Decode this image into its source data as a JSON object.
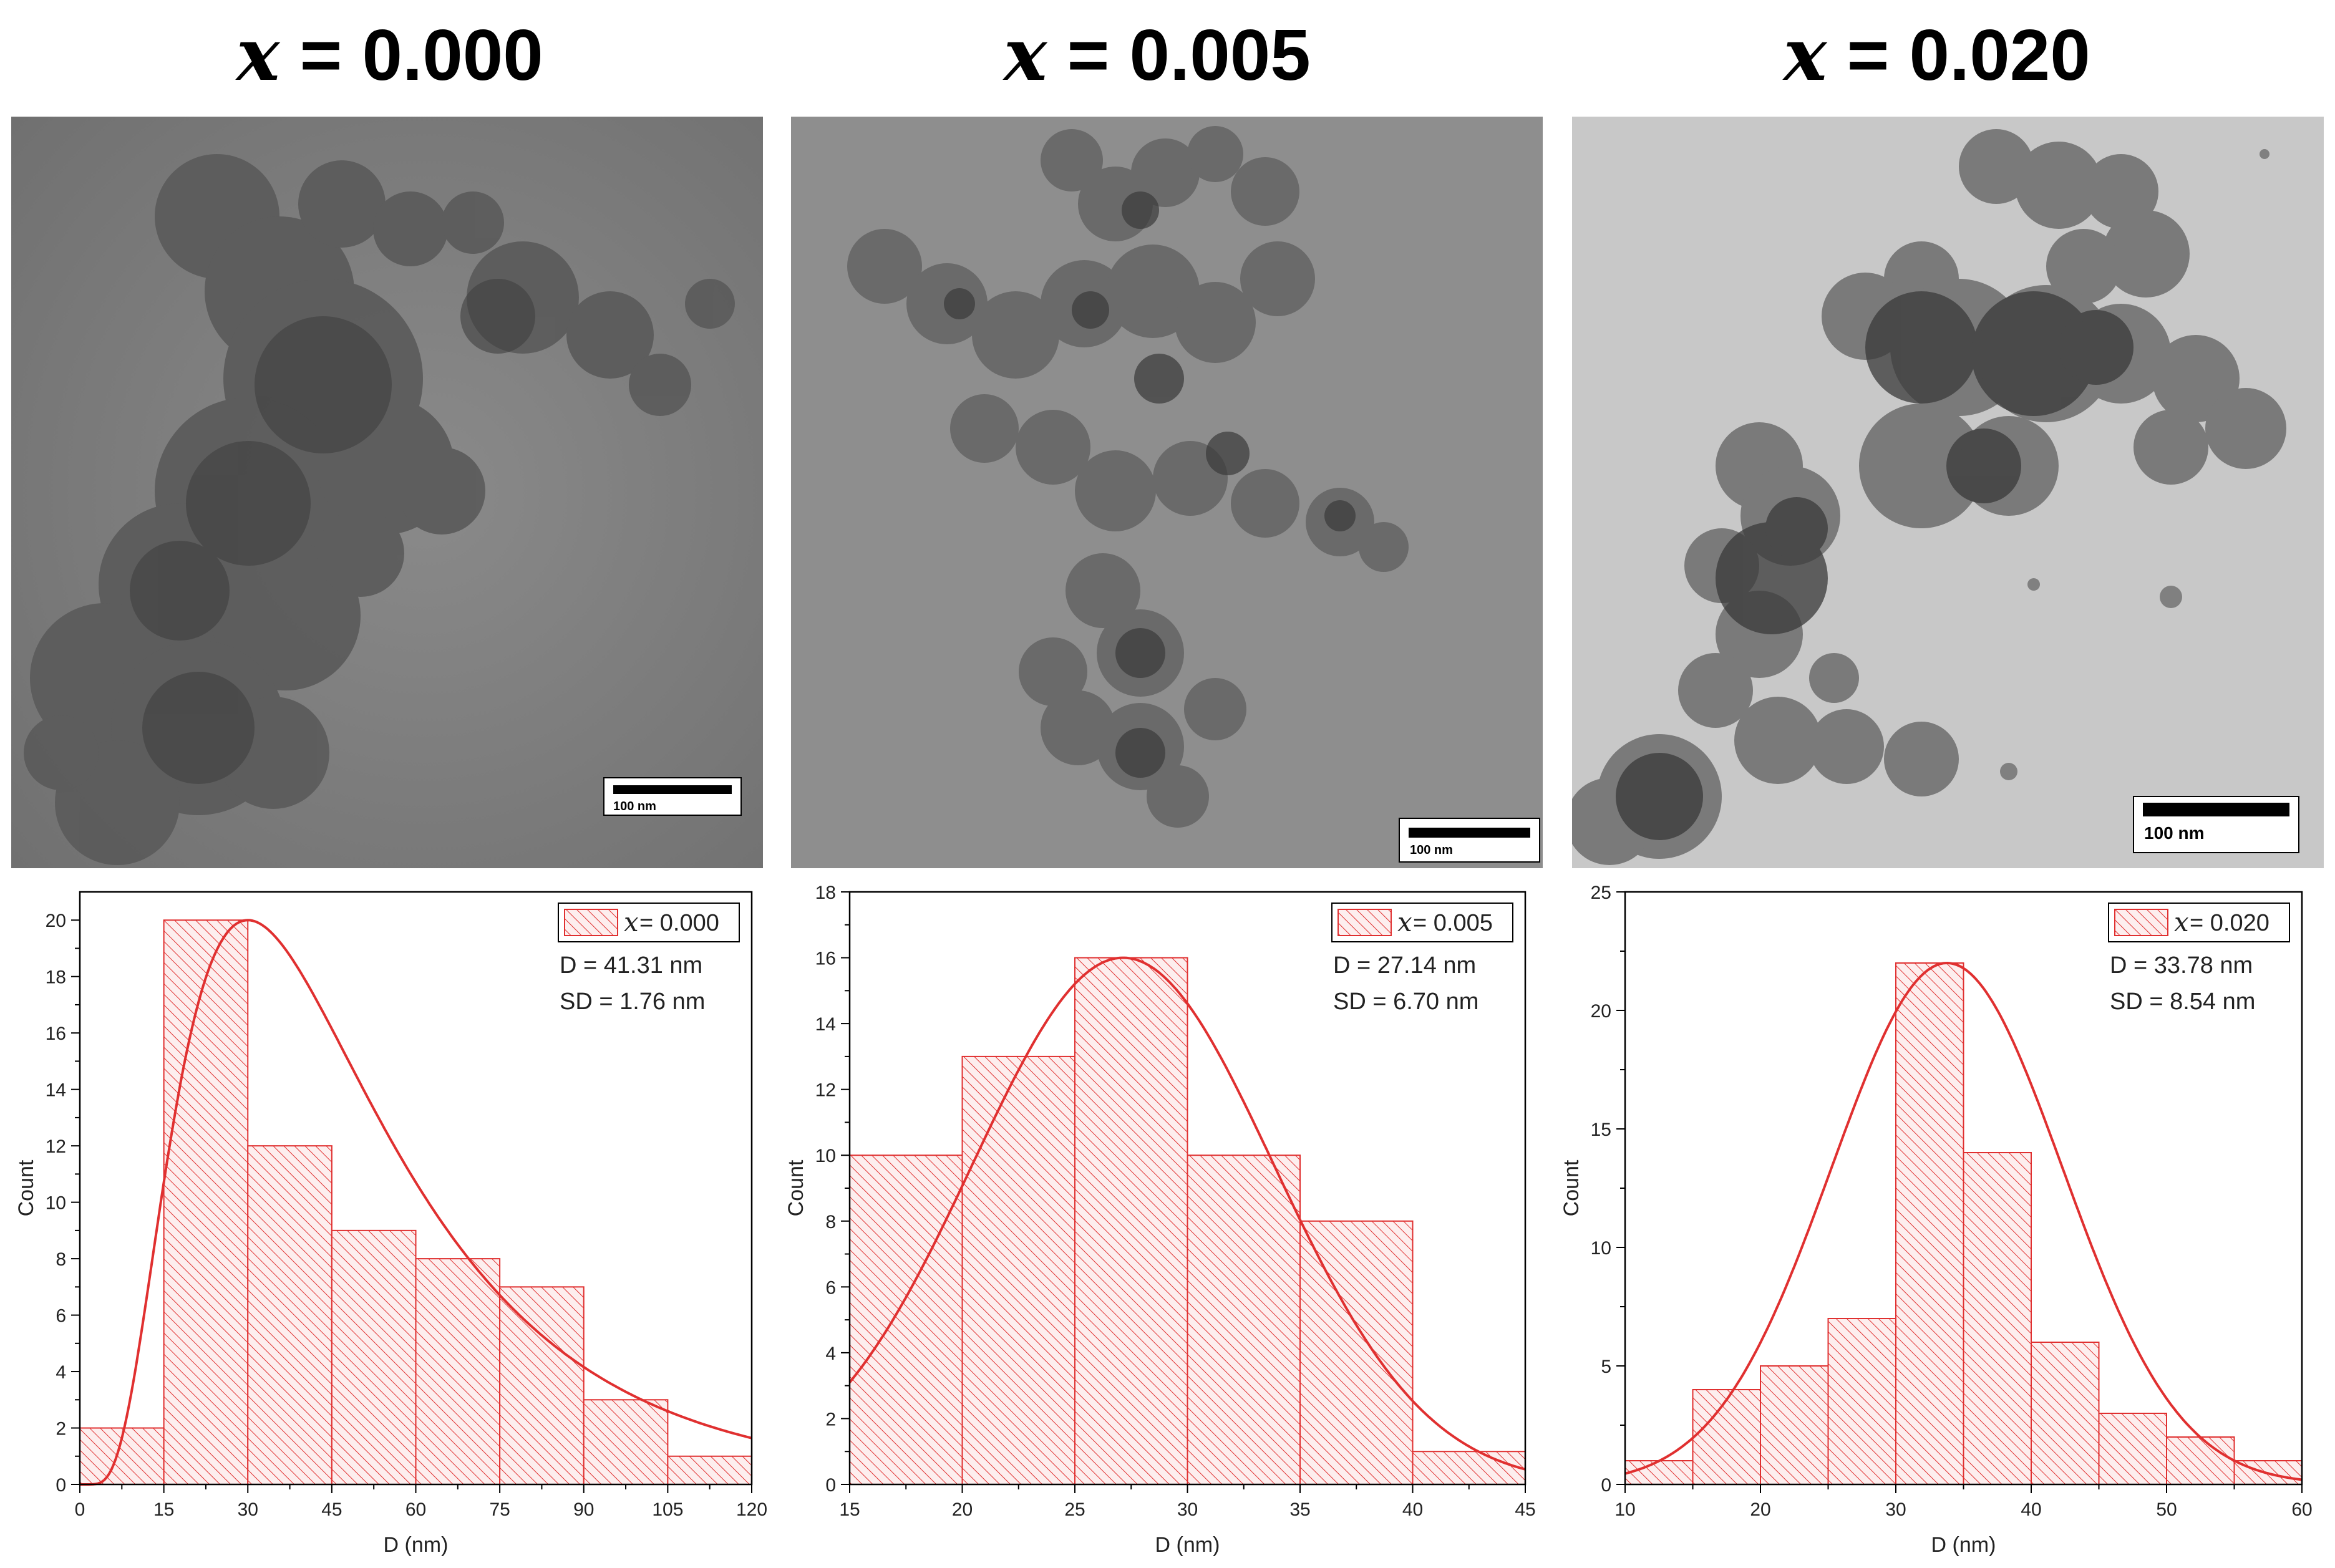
{
  "panels": [
    {
      "title_var": "x",
      "title_value": "= 0.000",
      "tem": {
        "scale_label": "100 nm",
        "background": "#7e7e7e",
        "particle": "#5a5a5a"
      },
      "chart_data": {
        "type": "bar",
        "xlabel": "D (nm)",
        "ylabel": "Count",
        "xlim": [
          0,
          120
        ],
        "ylim": [
          0,
          21
        ],
        "xticks": [
          0,
          15,
          30,
          45,
          60,
          75,
          90,
          105,
          120
        ],
        "yticks": [
          0,
          2,
          4,
          6,
          8,
          10,
          12,
          14,
          16,
          18,
          20
        ],
        "bins": [
          {
            "start": 0,
            "end": 15,
            "count": 2
          },
          {
            "start": 15,
            "end": 30,
            "count": 20
          },
          {
            "start": 30,
            "end": 45,
            "count": 12
          },
          {
            "start": 45,
            "end": 60,
            "count": 9
          },
          {
            "start": 60,
            "end": 75,
            "count": 8
          },
          {
            "start": 75,
            "end": 90,
            "count": 7
          },
          {
            "start": 90,
            "end": 105,
            "count": 3
          },
          {
            "start": 105,
            "end": 120,
            "count": 1
          }
        ],
        "fit": {
          "type": "lognormal",
          "peak_x": 30,
          "peak_y": 20
        },
        "legend": {
          "var": "x",
          "label": "= 0.000",
          "placement": "top-right"
        },
        "stats": [
          "D = 41.31 nm",
          "SD = 1.76 nm"
        ],
        "color": "#e03030"
      }
    },
    {
      "title_var": "x",
      "title_value": "= 0.005",
      "tem": {
        "scale_label": "100 nm",
        "background": "#8f8f8f",
        "particle": "#4e4e4e"
      },
      "chart_data": {
        "type": "bar",
        "xlabel": "D (nm)",
        "ylabel": "Count",
        "xlim": [
          15,
          45
        ],
        "ylim": [
          0,
          18
        ],
        "xticks": [
          15,
          20,
          25,
          30,
          35,
          40,
          45
        ],
        "yticks": [
          0,
          2,
          4,
          6,
          8,
          10,
          12,
          14,
          16,
          18
        ],
        "bins": [
          {
            "start": 15,
            "end": 20,
            "count": 10
          },
          {
            "start": 20,
            "end": 25,
            "count": 13
          },
          {
            "start": 25,
            "end": 30,
            "count": 16
          },
          {
            "start": 30,
            "end": 35,
            "count": 10
          },
          {
            "start": 35,
            "end": 40,
            "count": 8
          },
          {
            "start": 40,
            "end": 45,
            "count": 1
          }
        ],
        "fit": {
          "type": "gaussian",
          "mean": 27.14,
          "sd": 6.7,
          "peak_y": 16
        },
        "legend": {
          "var": "x",
          "label": "= 0.005",
          "placement": "top-right"
        },
        "stats": [
          "D = 27.14 nm",
          "SD = 6.70 nm"
        ],
        "color": "#e03030"
      }
    },
    {
      "title_var": "x",
      "title_value": "= 0.020",
      "tem": {
        "scale_label": "100 nm",
        "background": "#c6c6c6",
        "particle": "#555555"
      },
      "chart_data": {
        "type": "bar",
        "xlabel": "D (nm)",
        "ylabel": "Count",
        "xlim": [
          10,
          60
        ],
        "ylim": [
          0,
          25
        ],
        "xticks": [
          10,
          20,
          30,
          40,
          50,
          60
        ],
        "yticks": [
          0,
          5,
          10,
          15,
          20,
          25
        ],
        "bins": [
          {
            "start": 10,
            "end": 15,
            "count": 1
          },
          {
            "start": 15,
            "end": 20,
            "count": 4
          },
          {
            "start": 20,
            "end": 25,
            "count": 5
          },
          {
            "start": 25,
            "end": 30,
            "count": 7
          },
          {
            "start": 30,
            "end": 35,
            "count": 22
          },
          {
            "start": 35,
            "end": 40,
            "count": 14
          },
          {
            "start": 40,
            "end": 45,
            "count": 6
          },
          {
            "start": 45,
            "end": 50,
            "count": 3
          },
          {
            "start": 50,
            "end": 55,
            "count": 2
          },
          {
            "start": 55,
            "end": 60,
            "count": 1
          }
        ],
        "fit": {
          "type": "gaussian",
          "mean": 33.78,
          "sd": 8.54,
          "peak_y": 22
        },
        "legend": {
          "var": "x",
          "label": "= 0.020",
          "placement": "top-right"
        },
        "stats": [
          "D = 33.78 nm",
          "SD = 8.54 nm"
        ],
        "color": "#e03030"
      }
    }
  ]
}
